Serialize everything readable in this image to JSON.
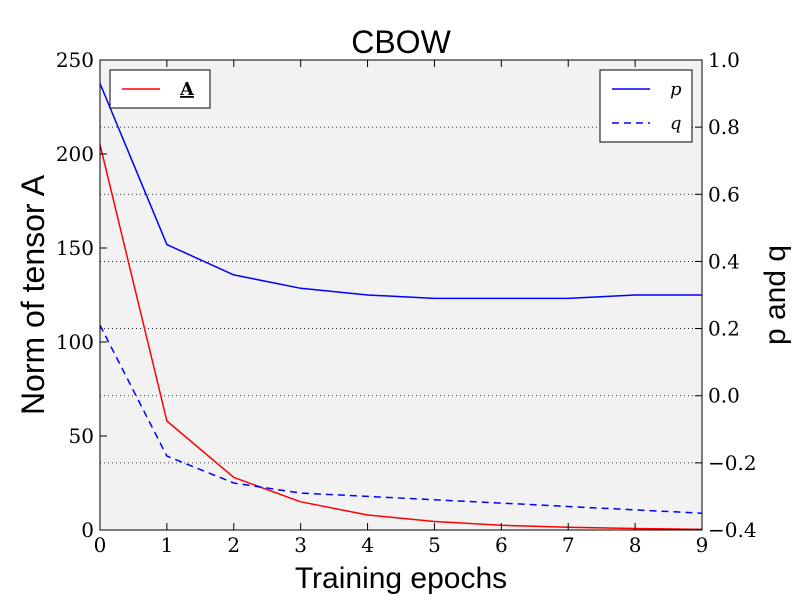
{
  "chart_data": {
    "type": "line",
    "title": "CBOW",
    "xlabel": "Training epochs",
    "ylabel_left": "Norm of tensor A",
    "ylabel_right": "p and q",
    "x": [
      0,
      1,
      2,
      3,
      4,
      5,
      6,
      7,
      8,
      9
    ],
    "xlim": [
      0,
      9
    ],
    "ylim_left": [
      0,
      250
    ],
    "ylim_right": [
      -0.4,
      1.0
    ],
    "xticks": [
      "0",
      "1",
      "2",
      "3",
      "4",
      "5",
      "6",
      "7",
      "8",
      "9"
    ],
    "yticks_left": [
      "0",
      "50",
      "100",
      "150",
      "200",
      "250"
    ],
    "yticks_right": [
      "−0.4",
      "−0.2",
      "0.0",
      "0.2",
      "0.4",
      "0.6",
      "0.8",
      "1.0"
    ],
    "grid": "horizontal dotted (right axis)",
    "series": [
      {
        "name": "A",
        "axis": "left",
        "color": "#ff0000",
        "style": "solid",
        "values": [
          205,
          58,
          28,
          15,
          8,
          4.5,
          2.5,
          1.5,
          0.8,
          0.3
        ]
      },
      {
        "name": "p",
        "axis": "right",
        "color": "#0000ff",
        "style": "solid",
        "values": [
          0.93,
          0.45,
          0.36,
          0.32,
          0.3,
          0.29,
          0.29,
          0.29,
          0.3,
          0.3
        ]
      },
      {
        "name": "q",
        "axis": "right",
        "color": "#0000ff",
        "style": "dashed",
        "values": [
          0.21,
          -0.18,
          -0.26,
          -0.29,
          -0.3,
          -0.31,
          -0.32,
          -0.33,
          -0.34,
          -0.35
        ]
      }
    ],
    "legends": [
      {
        "placement": "top-left",
        "entries": [
          "A"
        ]
      },
      {
        "placement": "top-right",
        "entries": [
          "p",
          "q"
        ]
      }
    ]
  }
}
